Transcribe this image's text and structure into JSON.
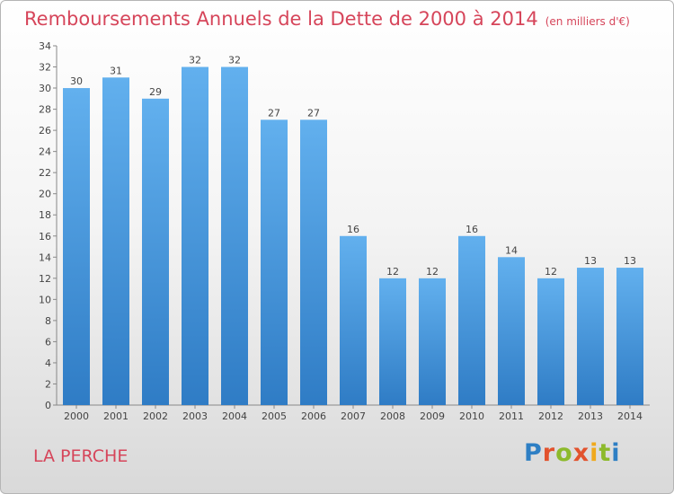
{
  "header": {
    "title": "Remboursements Annuels de la Dette de 2000 à 2014",
    "unit": "(en milliers d'€)"
  },
  "footer": {
    "city": "LA PERCHE",
    "logo_letters": [
      {
        "ch": "P",
        "color": "#2e7fc4"
      },
      {
        "ch": "r",
        "color": "#e2522d"
      },
      {
        "ch": "o",
        "color": "#8dba2c"
      },
      {
        "ch": "x",
        "color": "#e2522d"
      },
      {
        "ch": "i",
        "color": "#f0a91d"
      },
      {
        "ch": "t",
        "color": "#8dba2c"
      },
      {
        "ch": "i",
        "color": "#2e7fc4"
      }
    ]
  },
  "chart_data": {
    "type": "bar",
    "title": "Remboursements Annuels de la Dette de 2000 à 2014",
    "xlabel": "",
    "ylabel": "",
    "categories": [
      "2000",
      "2001",
      "2002",
      "2003",
      "2004",
      "2005",
      "2006",
      "2007",
      "2008",
      "2009",
      "2010",
      "2011",
      "2012",
      "2013",
      "2014"
    ],
    "values": [
      30,
      31,
      29,
      32,
      32,
      27,
      27,
      16,
      12,
      12,
      16,
      14,
      12,
      13,
      13
    ],
    "ylim": [
      0,
      34
    ],
    "yticks": [
      0,
      2,
      4,
      6,
      8,
      10,
      12,
      14,
      16,
      18,
      20,
      22,
      24,
      26,
      28,
      30,
      32,
      34
    ],
    "grid": false,
    "legend": "none",
    "bar_color": "#3f8fd6"
  }
}
